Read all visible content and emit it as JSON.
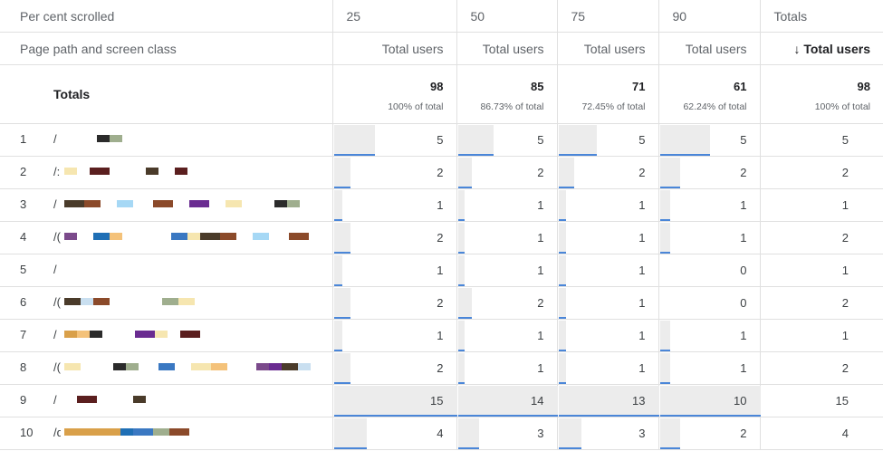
{
  "header": {
    "dimension_header": "Per cent scrolled",
    "path_header": "Page path and screen class",
    "columns": [
      {
        "scroll": "25",
        "metric": "Total users"
      },
      {
        "scroll": "50",
        "metric": "Total users"
      },
      {
        "scroll": "75",
        "metric": "Total users"
      },
      {
        "scroll": "90",
        "metric": "Total users"
      },
      {
        "scroll": "Totals",
        "metric": "↓ Total users"
      }
    ]
  },
  "totals": {
    "label": "Totals",
    "cells": [
      {
        "value": "98",
        "pct": "100% of total"
      },
      {
        "value": "85",
        "pct": "86.73% of total"
      },
      {
        "value": "71",
        "pct": "72.45% of total"
      },
      {
        "value": "61",
        "pct": "62.24% of total"
      },
      {
        "value": "98",
        "pct": "100% of total"
      }
    ]
  },
  "rows": [
    {
      "index": "1",
      "path": "/",
      "values": [
        "5",
        "5",
        "5",
        "5",
        "5"
      ],
      "bars": [
        0.3333,
        0.3571,
        0.3846,
        0.5
      ]
    },
    {
      "index": "2",
      "path": "/:",
      "values": [
        "2",
        "2",
        "2",
        "2",
        "2"
      ],
      "bars": [
        0.1333,
        0.1429,
        0.1538,
        0.2
      ]
    },
    {
      "index": "3",
      "path": "/",
      "values": [
        "1",
        "1",
        "1",
        "1",
        "1"
      ],
      "bars": [
        0.0667,
        0.0714,
        0.0769,
        0.1
      ]
    },
    {
      "index": "4",
      "path": "/(",
      "values": [
        "2",
        "1",
        "1",
        "1",
        "2"
      ],
      "bars": [
        0.1333,
        0.0714,
        0.0769,
        0.1
      ]
    },
    {
      "index": "5",
      "path": "/",
      "values": [
        "1",
        "1",
        "1",
        "0",
        "1"
      ],
      "bars": [
        0.0667,
        0.0714,
        0.0769,
        0
      ]
    },
    {
      "index": "6",
      "path": "/(",
      "values": [
        "2",
        "2",
        "1",
        "0",
        "2"
      ],
      "bars": [
        0.1333,
        0.1429,
        0.0769,
        0
      ]
    },
    {
      "index": "7",
      "path": "/",
      "values": [
        "1",
        "1",
        "1",
        "1",
        "1"
      ],
      "bars": [
        0.0667,
        0.0714,
        0.0769,
        0.1
      ]
    },
    {
      "index": "8",
      "path": "/(",
      "values": [
        "2",
        "1",
        "1",
        "1",
        "2"
      ],
      "bars": [
        0.1333,
        0.0714,
        0.0769,
        0.1
      ]
    },
    {
      "index": "9",
      "path": "/",
      "values": [
        "15",
        "14",
        "13",
        "10",
        "15"
      ],
      "bars": [
        1,
        1,
        1,
        1
      ]
    },
    {
      "index": "10",
      "path": "/d",
      "values": [
        "4",
        "3",
        "3",
        "2",
        "4"
      ],
      "bars": [
        0.2667,
        0.2143,
        0.2308,
        0.2
      ]
    }
  ],
  "colors": {
    "bar_fill": "#ececec",
    "bar_underline": "#4a86d8",
    "grid": "#e0e0e0",
    "redaction_palette": [
      "#6a2c91",
      "#1f6fb5",
      "#4a3b2a",
      "#9fae8e",
      "#5b1f1f",
      "#a6d8f5",
      "#f4c27a",
      "#f6e6b0",
      "#8b4a2a",
      "#2b2b2b",
      "#3a78c2",
      "#d9a04a",
      "#7b4a8b",
      "#c9dff0"
    ]
  }
}
